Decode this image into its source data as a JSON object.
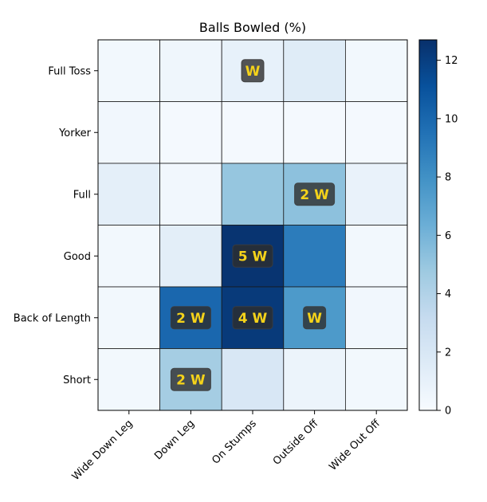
{
  "chart_data": {
    "type": "heatmap",
    "title": "Balls Bowled (%)",
    "x_categories": [
      "Wide Down Leg",
      "Down Leg",
      "On Stumps",
      "Outside Off",
      "Wide Out Off"
    ],
    "y_categories": [
      "Full Toss",
      "Yorker",
      "Full",
      "Good",
      "Back of Length",
      "Short"
    ],
    "values": [
      [
        0.3,
        0.5,
        1.0,
        1.5,
        0.3
      ],
      [
        0.4,
        0.2,
        0.2,
        0.2,
        0.2
      ],
      [
        1.2,
        0.4,
        5.0,
        5.3,
        0.9
      ],
      [
        0.3,
        1.3,
        12.5,
        9.0,
        0.3
      ],
      [
        0.3,
        10.0,
        12.2,
        7.5,
        0.4
      ],
      [
        0.3,
        4.5,
        2.0,
        0.7,
        0.3
      ]
    ],
    "annotations": [
      {
        "row": 0,
        "col": 2,
        "text": "W"
      },
      {
        "row": 2,
        "col": 3,
        "text": "2 W"
      },
      {
        "row": 3,
        "col": 2,
        "text": "5 W"
      },
      {
        "row": 4,
        "col": 1,
        "text": "2 W"
      },
      {
        "row": 4,
        "col": 2,
        "text": "4 W"
      },
      {
        "row": 4,
        "col": 3,
        "text": "W"
      },
      {
        "row": 5,
        "col": 1,
        "text": "2 W"
      }
    ],
    "colormap": "Blues",
    "colorbar": {
      "min": 0,
      "max": 12.7,
      "ticks": [
        "0",
        "2",
        "4",
        "6",
        "8",
        "10",
        "12"
      ]
    },
    "grid": true,
    "annotation_color": "#f4d21a"
  }
}
